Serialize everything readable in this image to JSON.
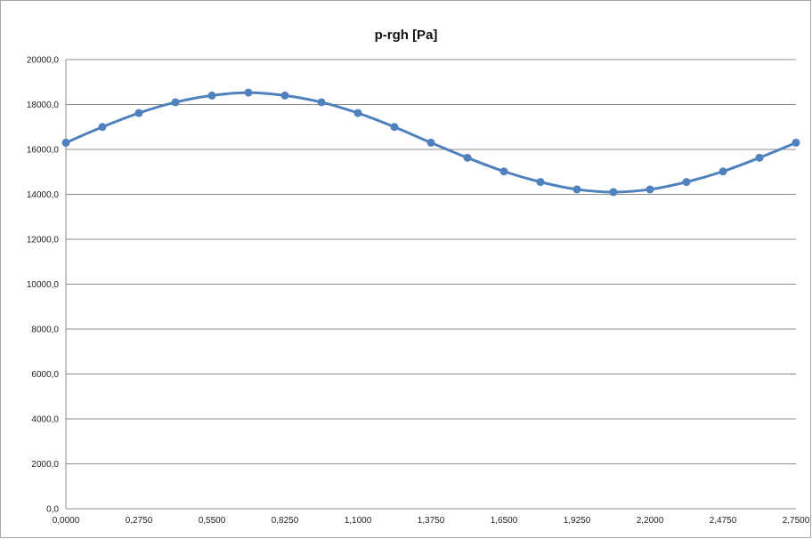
{
  "chart_data": {
    "type": "line",
    "title": "p-rgh [Pa]",
    "xlabel": "",
    "ylabel": "",
    "x": [
      0.0,
      0.1375,
      0.275,
      0.4125,
      0.55,
      0.6875,
      0.825,
      0.9625,
      1.1,
      1.2375,
      1.375,
      1.5125,
      1.65,
      1.7875,
      1.925,
      2.0625,
      2.2,
      2.3375,
      2.475,
      2.6125,
      2.75
    ],
    "series": [
      {
        "color": "#4f81bd",
        "values": [
          16300,
          17000,
          17620,
          18100,
          18400,
          18530,
          18400,
          18100,
          17620,
          17000,
          16300,
          15630,
          15020,
          14550,
          14220,
          14100,
          14220,
          14550,
          15020,
          15630,
          16300
        ]
      }
    ],
    "xlim": [
      0,
      2.75
    ],
    "ylim": [
      0,
      20000
    ],
    "x_ticks": [
      "0,0000",
      "0,2750",
      "0,5500",
      "0,8250",
      "1,1000",
      "1,3750",
      "1,6500",
      "1,9250",
      "2,2000",
      "2,4750",
      "2,7500"
    ],
    "y_ticks": [
      "0,0",
      "2000,0",
      "4000,0",
      "6000,0",
      "8000,0",
      "10000,0",
      "12000,0",
      "14000,0",
      "16000,0",
      "18000,0",
      "20000,0"
    ],
    "grid": "horizontal",
    "legend": "none"
  }
}
